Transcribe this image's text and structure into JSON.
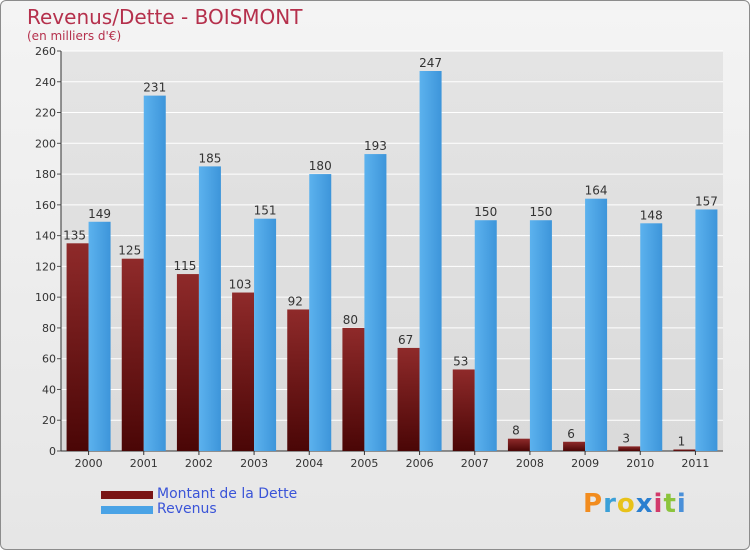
{
  "header": {
    "title": "Revenus/Dette - BOISMONT",
    "subtitle": "(en milliers d'€)"
  },
  "brand": {
    "letters": [
      "P",
      "r",
      "o",
      "x",
      "i",
      "t",
      "i"
    ],
    "colors": [
      "#f28c1e",
      "#3aa0d8",
      "#e8c21a",
      "#2a7fd0",
      "#d23a6a",
      "#8cc43c",
      "#4a90d9"
    ]
  },
  "colors": {
    "dette": "#7a1515",
    "revenus": "#4aa3e6",
    "grid": "#ffffff",
    "axis_text": "#333333",
    "label_text": "#333333"
  },
  "chart_data": {
    "type": "bar",
    "title": "Revenus/Dette - BOISMONT",
    "subtitle": "(en milliers d'€)",
    "categories": [
      "2000",
      "2001",
      "2002",
      "2003",
      "2004",
      "2005",
      "2006",
      "2007",
      "2008",
      "2009",
      "2010",
      "2011"
    ],
    "series": [
      {
        "name": "Montant de la Dette",
        "values": [
          135,
          125,
          115,
          103,
          92,
          80,
          67,
          53,
          8,
          6,
          3,
          1
        ]
      },
      {
        "name": "Revenus",
        "values": [
          149,
          231,
          185,
          151,
          180,
          193,
          247,
          150,
          150,
          164,
          148,
          157
        ]
      }
    ],
    "ylim": [
      0,
      260
    ],
    "yticks": [
      "0",
      "20",
      "40",
      "60",
      "80",
      "100",
      "120",
      "140",
      "160",
      "180",
      "200",
      "220",
      "240",
      "260"
    ],
    "grid": true,
    "legend_position": "bottom-left"
  }
}
